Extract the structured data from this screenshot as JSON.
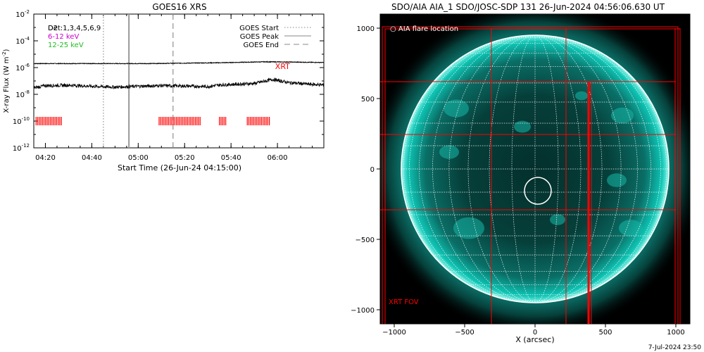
{
  "footer_date": "7-Jul-2024 23:50",
  "chart_data": [
    {
      "type": "line",
      "title": "GOES16 XRS",
      "xlabel": "Start Time (26-Jun-24 04:15:00)",
      "ylabel": "X-ray Flux (W m",
      "ylabel_sup": "-2",
      "ylabel_close": ")",
      "log_y": true,
      "grid": false,
      "xlim": [
        "04:15",
        "06:20"
      ],
      "ylim": [
        1e-12,
        0.01
      ],
      "x_ticks": [
        "04:20",
        "04:40",
        "05:00",
        "05:20",
        "05:40",
        "06:00"
      ],
      "y_ticks": [
        {
          "base": "10",
          "exp": "-2",
          "value": -2
        },
        {
          "base": "10",
          "exp": "-4",
          "value": -4
        },
        {
          "base": "10",
          "exp": "-6",
          "value": -6
        },
        {
          "base": "10",
          "exp": "-8",
          "value": -8
        },
        {
          "base": "10",
          "exp": "-10",
          "value": -10
        },
        {
          "base": "10",
          "exp": "-12",
          "value": -12
        }
      ],
      "legend_left": [
        {
          "label": "Det:1,3,4,5,6,9",
          "color": "#000000"
        },
        {
          "label": "6-12 keV",
          "color": "#cc00cc"
        },
        {
          "label": "12-25 keV",
          "color": "#22bb22"
        }
      ],
      "legend_left_overprint": "D2",
      "legend_right": [
        {
          "label": "GOES Start",
          "style": "dotted"
        },
        {
          "label": "GOES Peak",
          "style": "solid"
        },
        {
          "label": "GOES End",
          "style": "dashed"
        }
      ],
      "legend_placement": "top-right",
      "vlines": [
        {
          "name": "GOES Start",
          "time": "04:45",
          "style": "dotted"
        },
        {
          "name": "GOES Peak",
          "time": "04:56",
          "style": "solid"
        },
        {
          "name": "GOES End",
          "time": "05:15",
          "style": "dashed"
        }
      ],
      "series": [
        {
          "name": "GOES 1-8 A",
          "color": "#000000",
          "x": [
            "04:15",
            "04:25",
            "04:35",
            "04:45",
            "04:55",
            "05:05",
            "05:15",
            "05:25",
            "05:35",
            "05:45",
            "05:55",
            "06:05",
            "06:20"
          ],
          "y": [
            2e-06,
            2e-06,
            2e-06,
            2e-06,
            2e-06,
            2e-06,
            2.1e-06,
            2.2e-06,
            2.3e-06,
            2.5e-06,
            2.7e-06,
            2.6e-06,
            2.4e-06
          ]
        },
        {
          "name": "GOES 0.5-4 A",
          "color": "#000000",
          "x": [
            "04:15",
            "04:20",
            "04:30",
            "04:40",
            "04:50",
            "05:00",
            "05:10",
            "05:20",
            "05:30",
            "05:35",
            "05:45",
            "05:50",
            "05:58",
            "06:05",
            "06:12",
            "06:20"
          ],
          "y": [
            3e-08,
            4.5e-08,
            4.8e-08,
            4e-08,
            3.5e-08,
            4e-08,
            4.5e-08,
            4.2e-08,
            3.8e-08,
            5e-08,
            6e-08,
            6.5e-08,
            1.3e-07,
            7.5e-08,
            6e-08,
            5e-08
          ]
        }
      ],
      "xrt_label": "XRT",
      "xrt_level": 1e-10,
      "xrt_intervals": [
        [
          "04:16",
          "04:27"
        ],
        [
          "05:09",
          "05:27"
        ],
        [
          "05:35",
          "05:38"
        ],
        [
          "05:47",
          "05:57"
        ]
      ]
    },
    {
      "type": "image",
      "title": "SDO/AIA AIA_1 SDO/JOSC-SDP 131 26-Jun-2024 04:56:06.630 UT",
      "xlabel": "X (arcsec)",
      "xlim": [
        -1100,
        1100
      ],
      "ylim": [
        -1100,
        1100
      ],
      "x_ticks": [
        -1000,
        -500,
        0,
        500,
        1000
      ],
      "y_ticks": [
        1000,
        500,
        0,
        -500,
        -1000
      ],
      "x_tick_labels": [
        "−1000",
        "−500",
        "0",
        "500",
        "1000"
      ],
      "y_tick_labels": [
        "1000",
        "500",
        "0",
        "−500",
        "−1000"
      ],
      "legend_text": "○ AIA flare location",
      "flare_location": [
        20,
        -155
      ],
      "flare_radius": 95,
      "xrt_fov_label": "XRT FOV",
      "xrt_fov": [
        -1100,
        1000,
        -1100,
        1000
      ],
      "solar_radius": 950,
      "grid_lines_x": [
        -310,
        220
      ],
      "grid_lines_y": [
        620,
        245,
        -290
      ],
      "vertical_edge_x": 380,
      "disk_color": "#0ec4b4",
      "fov_color": "#ff0000"
    }
  ]
}
